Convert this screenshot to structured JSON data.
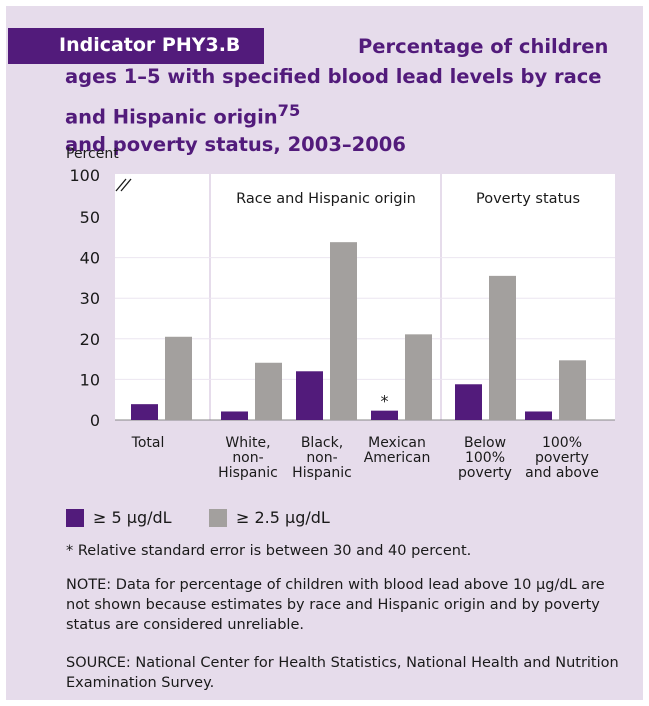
{
  "indicator": {
    "label": "Indicator PHY3.B"
  },
  "title": {
    "line1": "Percentage of children",
    "line2": "ages 1–5 with specified blood lead levels by race",
    "line3_pre": "and Hispanic origin",
    "line3_sup": "75",
    "line3_post": " and poverty status, 2003–2006"
  },
  "colors": {
    "panel_bg": "#e6dceb",
    "accent": "#521b7b",
    "series_5": "#521b7b",
    "series_2_5": "#a3a09e"
  },
  "chart_data": {
    "type": "bar",
    "ylabel": "Percent",
    "y_ticks": [
      "0",
      "10",
      "20",
      "30",
      "40",
      "50",
      "100"
    ],
    "y_break": true,
    "ylim": [
      0,
      100
    ],
    "categories": [
      [
        "Total"
      ],
      [
        "White,",
        "non-",
        "Hispanic"
      ],
      [
        "Black,",
        "non-",
        "Hispanic"
      ],
      [
        "Mexican",
        "American"
      ],
      [
        "Below",
        "100%",
        "poverty"
      ],
      [
        "100%",
        "poverty",
        "and above"
      ]
    ],
    "groups": [
      {
        "label": "Race and Hispanic origin",
        "categories": [
          1,
          2,
          3
        ]
      },
      {
        "label": "Poverty status",
        "categories": [
          4,
          5
        ]
      }
    ],
    "series": [
      {
        "name": "≥ 5 µg/dL",
        "values": [
          3.9,
          2.1,
          12.0,
          2.3,
          8.8,
          2.1
        ]
      },
      {
        "name": "≥ 2.5 µg/dL",
        "values": [
          20.5,
          14.1,
          43.8,
          21.1,
          35.5,
          14.7
        ]
      }
    ],
    "annotations": [
      {
        "category": 3,
        "series": 0,
        "text": "*"
      }
    ],
    "grid": "vertical separators",
    "legend": "bottom-left"
  },
  "footnote": "* Relative standard error is between 30 and 40 percent.",
  "note": "NOTE: Data for percentage of children with blood lead above 10 µg/dL are not shown because estimates by race and Hispanic origin and by poverty status are considered unreliable.",
  "source": "SOURCE: National Center for Health Statistics, National Health and Nutrition Examination Survey."
}
